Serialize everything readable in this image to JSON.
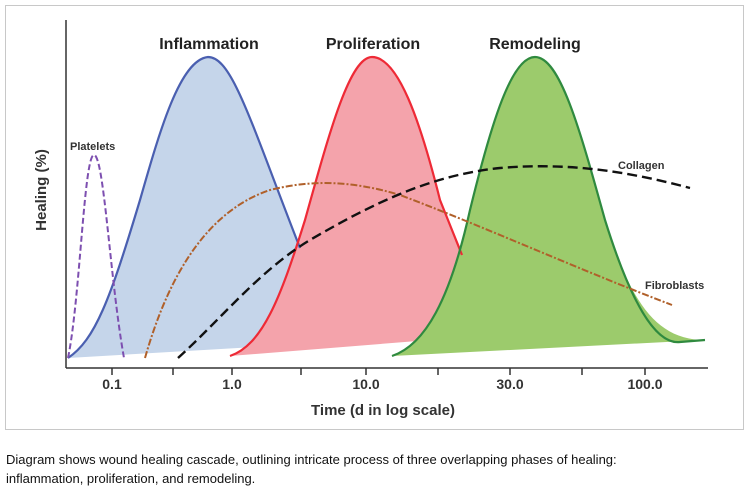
{
  "phases": {
    "inflammation": "Inflammation",
    "proliferation": "Proliferation",
    "remodeling": "Remodeling"
  },
  "curves": {
    "platelets": "Platelets",
    "collagen": "Collagen",
    "fibroblasts": "Fibroblasts"
  },
  "axes": {
    "ylabel": "Healing (%)",
    "xlabel": "Time (d in log scale)",
    "xticks": [
      "0.1",
      "1.0",
      "10.0",
      "30.0",
      "100.0"
    ]
  },
  "colors": {
    "inflammation": "#4a5fb0",
    "inflammation_fill": "#c5d5ea",
    "proliferation": "#ee2a36",
    "proliferation_fill": "#f4a3ab",
    "remodeling": "#2f8a3f",
    "remodeling_fill": "#9ccb6c",
    "platelets": "#7d4fb0",
    "collagen": "#111111",
    "fibroblasts": "#b0602a"
  },
  "caption": {
    "line1": "Diagram shows wound healing cascade, outlining intricate process of three overlapping phases of healing:",
    "line2": "inflammation, proliferation, and remodeling."
  }
}
